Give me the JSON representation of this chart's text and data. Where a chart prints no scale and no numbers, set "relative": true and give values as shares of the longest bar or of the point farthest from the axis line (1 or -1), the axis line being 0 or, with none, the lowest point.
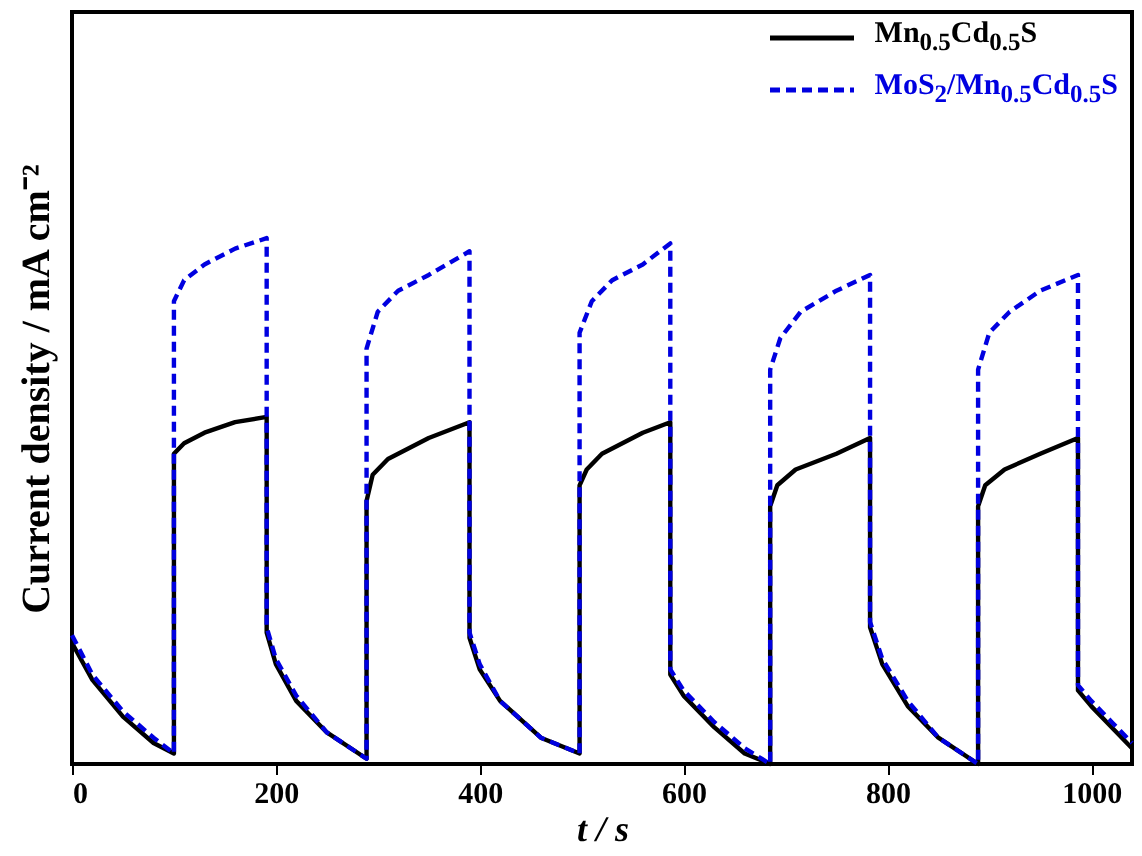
{
  "chart_data": {
    "type": "line",
    "relative": true,
    "xlabel": "t / s",
    "ylabel": "Current density / mA cm⁻²",
    "xlim": [
      0,
      1040
    ],
    "xticks": [
      0,
      200,
      400,
      600,
      800,
      1000
    ],
    "legend": "top right",
    "marker": "none",
    "series": [
      {
        "name": "Mn$_{0.5}$Cd$_{0.5}$S",
        "color": "#000000",
        "line_style": "solid",
        "x": [
          0,
          20,
          50,
          80,
          100,
          100,
          110,
          130,
          160,
          191,
          191,
          200,
          220,
          250,
          289,
          289,
          295,
          310,
          350,
          390,
          390,
          400,
          420,
          460,
          498,
          498,
          505,
          520,
          560,
          587,
          587,
          600,
          630,
          660,
          685,
          685,
          692,
          710,
          750,
          783,
          783,
          795,
          820,
          850,
          889,
          889,
          896,
          915,
          950,
          987,
          987,
          1000,
          1020,
          1040
        ],
        "values": [
          0.23,
          0.16,
          0.09,
          0.04,
          0.02,
          0.59,
          0.61,
          0.63,
          0.65,
          0.66,
          0.25,
          0.19,
          0.12,
          0.06,
          0.01,
          0.5,
          0.55,
          0.58,
          0.62,
          0.65,
          0.24,
          0.18,
          0.12,
          0.05,
          0.02,
          0.53,
          0.56,
          0.59,
          0.63,
          0.65,
          0.17,
          0.13,
          0.07,
          0.02,
          0,
          0.49,
          0.53,
          0.56,
          0.59,
          0.62,
          0.26,
          0.19,
          0.11,
          0.05,
          0,
          0.49,
          0.53,
          0.56,
          0.59,
          0.62,
          0.14,
          0.11,
          0.07,
          0.03
        ]
      },
      {
        "name": "MoS$_{2}$/Mn$_{0.5}$Cd$_{0.5}$S",
        "color": "#0000e0",
        "line_style": "dashed",
        "x": [
          0,
          20,
          50,
          80,
          100,
          100,
          110,
          130,
          160,
          191,
          191,
          200,
          220,
          250,
          289,
          289,
          300,
          320,
          350,
          390,
          390,
          400,
          420,
          460,
          498,
          498,
          510,
          530,
          560,
          587,
          587,
          600,
          630,
          660,
          685,
          685,
          695,
          715,
          750,
          783,
          783,
          795,
          820,
          850,
          889,
          889,
          900,
          920,
          950,
          987,
          987,
          1000,
          1020,
          1040
        ],
        "values": [
          0.245,
          0.17,
          0.1,
          0.05,
          0.02,
          0.88,
          0.92,
          0.95,
          0.98,
          1,
          0.26,
          0.2,
          0.13,
          0.06,
          0.01,
          0.79,
          0.86,
          0.9,
          0.93,
          0.975,
          0.25,
          0.19,
          0.12,
          0.05,
          0.02,
          0.82,
          0.88,
          0.92,
          0.95,
          0.99,
          0.18,
          0.14,
          0.08,
          0.03,
          0,
          0.75,
          0.81,
          0.86,
          0.9,
          0.93,
          0.27,
          0.2,
          0.12,
          0.05,
          0,
          0.75,
          0.82,
          0.86,
          0.9,
          0.93,
          0.15,
          0.12,
          0.08,
          0.04
        ]
      }
    ]
  }
}
